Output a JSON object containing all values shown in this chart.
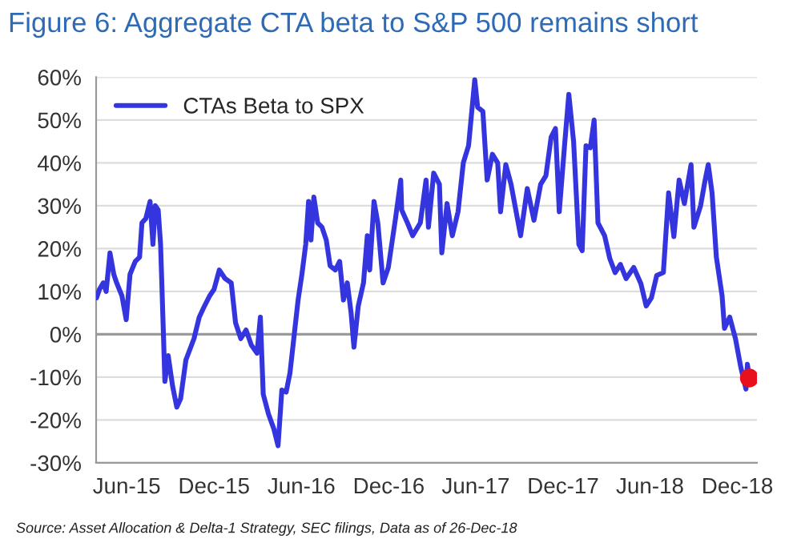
{
  "chart_data": {
    "type": "line",
    "title": "Figure 6: Aggregate CTA beta to S&P 500 remains short",
    "annotations": [
      "Source: Asset Allocation & Delta-1 Strategy, SEC filings, Data as of 26-Dec-18"
    ],
    "series": [
      {
        "name": "CTAs Beta to SPX",
        "color": "#3535e0",
        "x": [
          "2015-03-30",
          "2015-04-05",
          "2015-04-13",
          "2015-04-19",
          "2015-04-27",
          "2015-05-05",
          "2015-05-11",
          "2015-05-22",
          "2015-05-31",
          "2015-06-08",
          "2015-06-19",
          "2015-06-28",
          "2015-07-03",
          "2015-07-11",
          "2015-07-20",
          "2015-07-26",
          "2015-07-31",
          "2015-08-06",
          "2015-08-11",
          "2015-08-17",
          "2015-08-20",
          "2015-08-27",
          "2015-09-05",
          "2015-09-14",
          "2015-09-22",
          "2015-10-03",
          "2015-10-20",
          "2015-10-31",
          "2015-11-11",
          "2015-11-22",
          "2015-12-01",
          "2015-12-12",
          "2015-12-24",
          "2016-01-06",
          "2016-01-15",
          "2016-01-26",
          "2016-02-06",
          "2016-02-17",
          "2016-02-29",
          "2016-03-07",
          "2016-03-13",
          "2016-03-24",
          "2016-04-04",
          "2016-04-13",
          "2016-04-21",
          "2016-04-30",
          "2016-05-08",
          "2016-05-17",
          "2016-05-25",
          "2016-06-02",
          "2016-06-10",
          "2016-06-16",
          "2016-06-21",
          "2016-06-27",
          "2016-07-05",
          "2016-07-14",
          "2016-07-23",
          "2016-07-31",
          "2016-08-11",
          "2016-08-20",
          "2016-08-28",
          "2016-09-05",
          "2016-09-13",
          "2016-09-19",
          "2016-09-28",
          "2016-10-09",
          "2016-10-17",
          "2016-10-22",
          "2016-10-31",
          "2016-11-08",
          "2016-11-19",
          "2016-11-30",
          "2016-12-15",
          "2016-12-26",
          "2016-12-28",
          "2017-01-09",
          "2017-01-20",
          "2017-02-05",
          "2017-02-17",
          "2017-02-22",
          "2017-03-05",
          "2017-03-17",
          "2017-03-22",
          "2017-04-02",
          "2017-04-13",
          "2017-04-25",
          "2017-05-06",
          "2017-05-17",
          "2017-05-30",
          "2017-06-05",
          "2017-06-16",
          "2017-06-25",
          "2017-07-06",
          "2017-07-17",
          "2017-07-23",
          "2017-08-03",
          "2017-08-14",
          "2017-09-03",
          "2017-09-17",
          "2017-10-01",
          "2017-10-15",
          "2017-10-26",
          "2017-11-06",
          "2017-11-15",
          "2017-11-23",
          "2017-12-04",
          "2017-12-13",
          "2017-12-23",
          "2018-01-03",
          "2018-01-10",
          "2018-01-18",
          "2018-01-27",
          "2018-02-04",
          "2018-02-12",
          "2018-02-26",
          "2018-03-09",
          "2018-03-20",
          "2018-03-31",
          "2018-04-12",
          "2018-04-28",
          "2018-05-13",
          "2018-05-24",
          "2018-06-04",
          "2018-06-15",
          "2018-06-29",
          "2018-07-10",
          "2018-07-21",
          "2018-08-01",
          "2018-08-12",
          "2018-08-26",
          "2018-09-01",
          "2018-09-15",
          "2018-09-24",
          "2018-10-01",
          "2018-10-09",
          "2018-10-18",
          "2018-10-30",
          "2018-11-04",
          "2018-11-15",
          "2018-11-27",
          "2018-12-08",
          "2018-12-19",
          "2018-12-22",
          "2018-12-26"
        ],
        "values": [
          8.5,
          10.5,
          12,
          10,
          19,
          14,
          12,
          9,
          3.4,
          14,
          17,
          18,
          26,
          27,
          31,
          21,
          30,
          29,
          21,
          0,
          -11,
          -5,
          -12,
          -17,
          -15,
          -6,
          -1,
          4,
          6.6,
          9,
          10.5,
          15,
          13,
          12,
          2.7,
          -1,
          1,
          -2.5,
          -4.4,
          4,
          -14,
          -18.6,
          -22,
          -26,
          -13,
          -13.5,
          -9,
          0,
          8,
          14,
          21,
          31,
          22,
          32,
          26,
          25,
          22,
          16,
          15,
          17,
          8,
          12,
          5,
          -3,
          6.6,
          12,
          23,
          15,
          31,
          26,
          12,
          15.6,
          27,
          36,
          29,
          26,
          23,
          26,
          36,
          25,
          37.6,
          35,
          19,
          30.5,
          23,
          28.6,
          40,
          44,
          59.4,
          53,
          52,
          36,
          42,
          40,
          28.6,
          39.6,
          35,
          23,
          34,
          26.6,
          35,
          37,
          46,
          48,
          28.6,
          44,
          56,
          45,
          21,
          19.5,
          44,
          43.5,
          50,
          26,
          23,
          17.6,
          14.4,
          16.3,
          13,
          15.6,
          11.8,
          6.6,
          8.5,
          13.7,
          14.4,
          33,
          22.8,
          36,
          30.5,
          39.6,
          25,
          30,
          35.7,
          39.6,
          33,
          18,
          9,
          1.4,
          4,
          -1,
          -7.6,
          -12.8,
          -7,
          -10.2
        ]
      },
      {
        "type": "scatter",
        "color": "#e8101c",
        "x": [
          "2018-12-26"
        ],
        "values": [
          -10.2
        ],
        "marker": "circle"
      }
    ],
    "xlim": [
      "2015-03-29",
      "2019-01-11"
    ],
    "xticks": [
      {
        "value": "2015-06-01",
        "label": "Jun-15"
      },
      {
        "value": "2015-12-01",
        "label": "Dec-15"
      },
      {
        "value": "2016-06-01",
        "label": "Jun-16"
      },
      {
        "value": "2016-12-01",
        "label": "Dec-16"
      },
      {
        "value": "2017-06-01",
        "label": "Jun-17"
      },
      {
        "value": "2017-12-01",
        "label": "Dec-17"
      },
      {
        "value": "2018-06-01",
        "label": "Jun-18"
      },
      {
        "value": "2018-12-01",
        "label": "Dec-18"
      }
    ],
    "ylim": [
      -30,
      60
    ],
    "yticks": [
      {
        "value": -30,
        "label": "-30%"
      },
      {
        "value": -20,
        "label": "-20%"
      },
      {
        "value": -10,
        "label": "-10%"
      },
      {
        "value": 0,
        "label": "0%"
      },
      {
        "value": 10,
        "label": "10%"
      },
      {
        "value": 20,
        "label": "20%"
      },
      {
        "value": 30,
        "label": "30%"
      },
      {
        "value": 40,
        "label": "40%"
      },
      {
        "value": 50,
        "label": "50%"
      },
      {
        "value": 60,
        "label": "60%"
      }
    ],
    "ref_lines": [
      {
        "axis": "y",
        "value": 0,
        "color": "#9a9a9a"
      }
    ],
    "grid": "y",
    "legend": "top left",
    "marker": "none",
    "line_style": "solid"
  }
}
